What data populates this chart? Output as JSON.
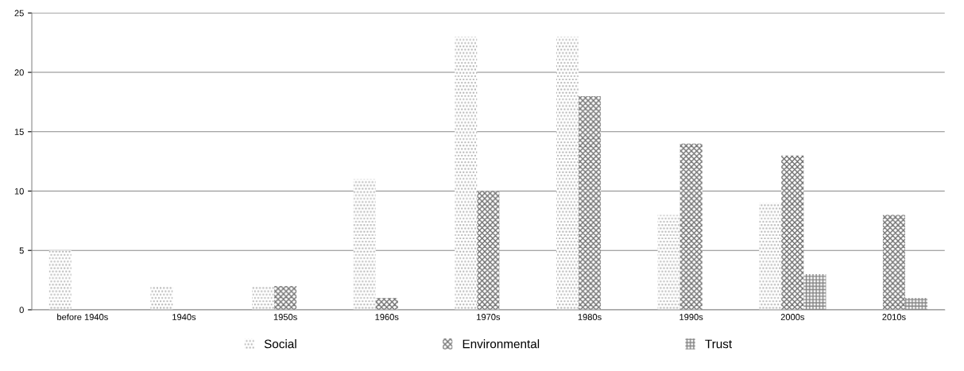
{
  "chart_data": {
    "type": "bar",
    "categories": [
      "before 1940s",
      "1940s",
      "1950s",
      "1960s",
      "1970s",
      "1980s",
      "1990s",
      "2000s",
      "2010s"
    ],
    "series": [
      {
        "name": "Social",
        "color": "#b0b0b0",
        "values": [
          5,
          2,
          2,
          11,
          23,
          23,
          8,
          9,
          null
        ]
      },
      {
        "name": "Environmental",
        "color": "#707070",
        "values": [
          null,
          null,
          2,
          1,
          10,
          18,
          14,
          13,
          8
        ]
      },
      {
        "name": "Trust",
        "color": "#808080",
        "values": [
          null,
          null,
          null,
          null,
          null,
          null,
          null,
          3,
          1
        ]
      }
    ],
    "ylim": [
      0,
      25
    ],
    "yticks": [
      0,
      5,
      10,
      15,
      20,
      25
    ],
    "grid": "y",
    "legend": "bottom"
  }
}
